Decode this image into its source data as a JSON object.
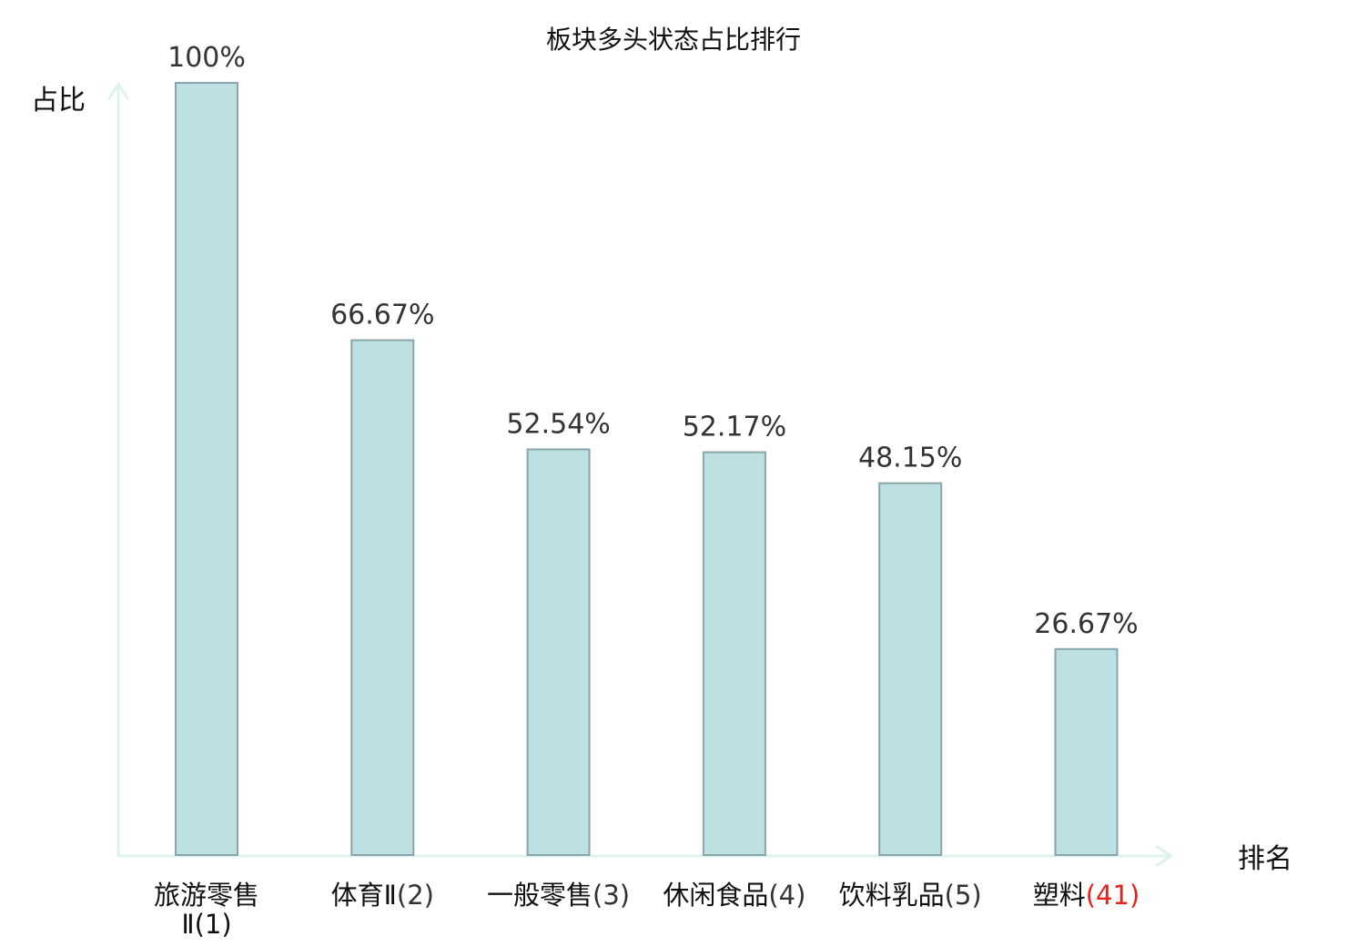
{
  "chart_data": {
    "type": "bar",
    "title": "板块多头状态占比排行",
    "ylabel": "占比",
    "xlabel": "排名",
    "ylim": [
      0,
      100
    ],
    "grid": false,
    "categories": [
      {
        "name": "旅游零售Ⅱ",
        "rank": "(1)"
      },
      {
        "name": "体育Ⅱ",
        "rank": "(2)"
      },
      {
        "name": "一般零售",
        "rank": "(3)"
      },
      {
        "name": "休闲食品",
        "rank": "(4)"
      },
      {
        "name": "饮料乳品",
        "rank": "(5)"
      },
      {
        "name": "塑料",
        "rank": "(41)"
      }
    ],
    "values": [
      100,
      66.67,
      52.54,
      52.17,
      48.15,
      26.67
    ],
    "value_labels": [
      "100%",
      "66.67%",
      "52.54%",
      "52.17%",
      "48.15%",
      "26.67%"
    ],
    "highlight_index": 5
  },
  "colors": {
    "bar_fill": "#bde0e3",
    "bar_stroke": "#88a6aa",
    "axis": "#dff2ef",
    "highlight_text": "#e8201e",
    "text": "#111111",
    "value_text": "#333333"
  }
}
